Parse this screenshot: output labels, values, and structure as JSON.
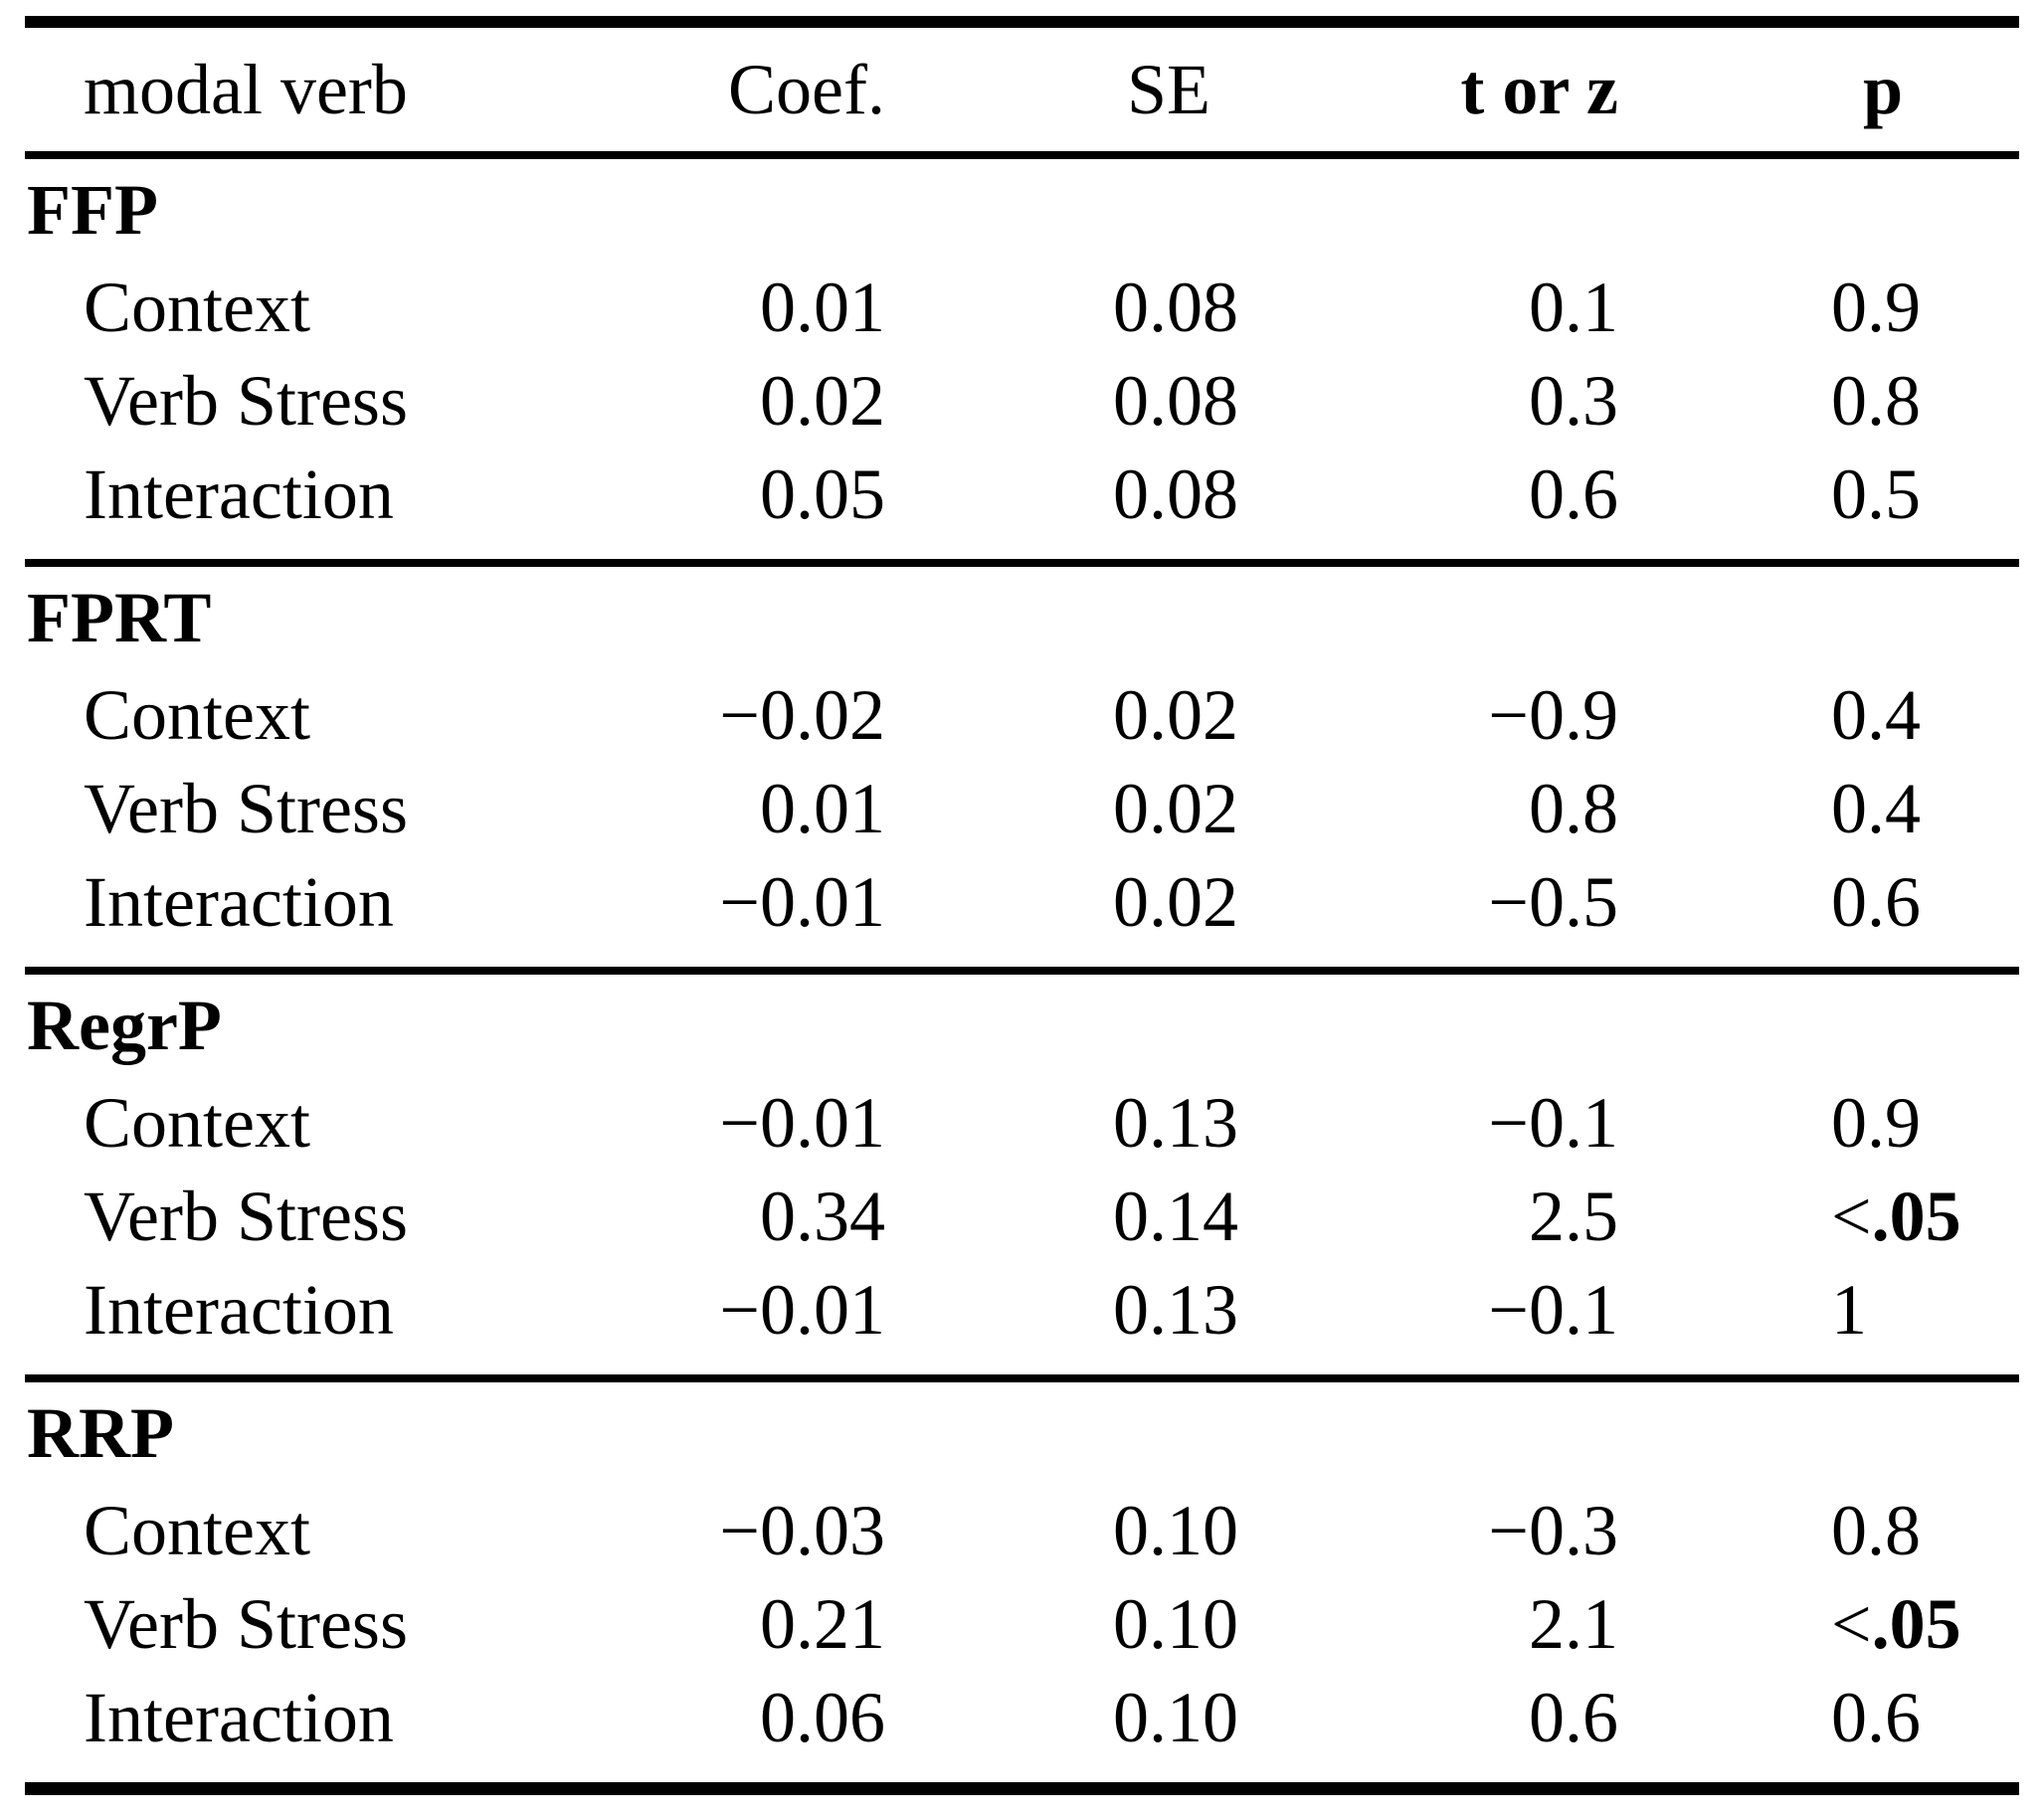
{
  "table": {
    "headers": {
      "col1": "modal verb",
      "col2": "Coef.",
      "col3": "SE",
      "col4": "t or z",
      "col5": "p"
    },
    "sections": [
      {
        "label": "FFP",
        "rows": [
          {
            "label": "Context",
            "coef": "0.01",
            "se": "0.08",
            "tz": "0.1",
            "p_prefix": "",
            "p": "0.9",
            "p_bold": false
          },
          {
            "label": "Verb Stress",
            "coef": "0.02",
            "se": "0.08",
            "tz": "0.3",
            "p_prefix": "",
            "p": "0.8",
            "p_bold": false
          },
          {
            "label": "Interaction",
            "coef": "0.05",
            "se": "0.08",
            "tz": "0.6",
            "p_prefix": "",
            "p": "0.5",
            "p_bold": false
          }
        ]
      },
      {
        "label": "FPRT",
        "rows": [
          {
            "label": "Context",
            "coef": "−0.02",
            "se": "0.02",
            "tz": "−0.9",
            "p_prefix": "",
            "p": "0.4",
            "p_bold": false
          },
          {
            "label": "Verb Stress",
            "coef": "0.01",
            "se": "0.02",
            "tz": "0.8",
            "p_prefix": "",
            "p": "0.4",
            "p_bold": false
          },
          {
            "label": "Interaction",
            "coef": "−0.01",
            "se": "0.02",
            "tz": "−0.5",
            "p_prefix": "",
            "p": "0.6",
            "p_bold": false
          }
        ]
      },
      {
        "label": "RegrP",
        "rows": [
          {
            "label": "Context",
            "coef": "−0.01",
            "se": "0.13",
            "tz": "−0.1",
            "p_prefix": "",
            "p": "0.9",
            "p_bold": false
          },
          {
            "label": "Verb Stress",
            "coef": "0.34",
            "se": "0.14",
            "tz": "2.5",
            "p_prefix": "<",
            "p": ".05",
            "p_bold": true
          },
          {
            "label": "Interaction",
            "coef": "−0.01",
            "se": "0.13",
            "tz": "−0.1",
            "p_prefix": "",
            "p": "1",
            "p_bold": false
          }
        ]
      },
      {
        "label": "RRP",
        "rows": [
          {
            "label": "Context",
            "coef": "−0.03",
            "se": "0.10",
            "tz": "−0.3",
            "p_prefix": "",
            "p": "0.8",
            "p_bold": false
          },
          {
            "label": "Verb Stress",
            "coef": "0.21",
            "se": "0.10",
            "tz": "2.1",
            "p_prefix": "<",
            "p": ".05",
            "p_bold": true
          },
          {
            "label": "Interaction",
            "coef": "0.06",
            "se": "0.10",
            "tz": "0.6",
            "p_prefix": "",
            "p": "0.6",
            "p_bold": false
          }
        ]
      }
    ]
  },
  "chart_data": {
    "type": "table",
    "columns": [
      "modal verb",
      "Coef.",
      "SE",
      "t or z",
      "p"
    ],
    "rows": [
      [
        "FFP",
        "",
        "",
        "",
        ""
      ],
      [
        "Context",
        "0.01",
        "0.08",
        "0.1",
        "0.9"
      ],
      [
        "Verb Stress",
        "0.02",
        "0.08",
        "0.3",
        "0.8"
      ],
      [
        "Interaction",
        "0.05",
        "0.08",
        "0.6",
        "0.5"
      ],
      [
        "FPRT",
        "",
        "",
        "",
        ""
      ],
      [
        "Context",
        "−0.02",
        "0.02",
        "−0.9",
        "0.4"
      ],
      [
        "Verb Stress",
        "0.01",
        "0.02",
        "0.8",
        "0.4"
      ],
      [
        "Interaction",
        "−0.01",
        "0.02",
        "−0.5",
        "0.6"
      ],
      [
        "RegrP",
        "",
        "",
        "",
        ""
      ],
      [
        "Context",
        "−0.01",
        "0.13",
        "−0.1",
        "0.9"
      ],
      [
        "Verb Stress",
        "0.34",
        "0.14",
        "2.5",
        "<.05"
      ],
      [
        "Interaction",
        "−0.01",
        "0.13",
        "−0.1",
        "1"
      ],
      [
        "RRP",
        "",
        "",
        "",
        ""
      ],
      [
        "Context",
        "−0.03",
        "0.10",
        "−0.3",
        "0.8"
      ],
      [
        "Verb Stress",
        "0.21",
        "0.10",
        "2.1",
        "<.05"
      ],
      [
        "Interaction",
        "0.06",
        "0.10",
        "0.6",
        "0.6"
      ]
    ]
  }
}
